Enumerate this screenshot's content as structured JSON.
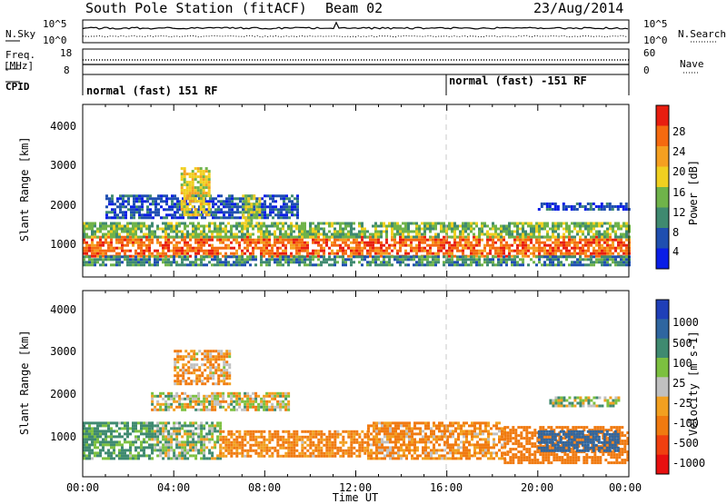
{
  "header": {
    "title": "South Pole Station (fitACF)",
    "beam": "Beam 02",
    "date": "23/Aug/2014"
  },
  "strips": {
    "nsky_label": "N.Sky",
    "nsky_tick_top": "10^5",
    "nsky_tick_bottom": "10^0",
    "nsearch_label": "N.Search",
    "nsearch_tick_top": "10^5",
    "nsearch_tick_bottom": "10^0",
    "freq_label": "Freq.",
    "freq_unit": "[MHz]",
    "freq_tick_top": "18",
    "freq_tick_bottom": "8",
    "nave_label": "Nave",
    "nave_tick_top": "60",
    "nave_tick_bottom": "0",
    "cpid_label": "CPID",
    "cpid_1": "normal (fast) 151 RF",
    "cpid_2": "normal (fast) -151 RF"
  },
  "axes": {
    "x_label": "Time UT",
    "x_ticks": [
      "00:00",
      "04:00",
      "08:00",
      "12:00",
      "16:00",
      "20:00",
      "00:00"
    ],
    "y_label": "Slant Range [km]",
    "y_ticks": [
      "1000",
      "2000",
      "3000",
      "4000"
    ]
  },
  "colorbars": {
    "power": {
      "label": "Power [dB]",
      "ticks": [
        "4",
        "8",
        "12",
        "16",
        "20",
        "24",
        "28"
      ],
      "colors": [
        "#0a1ee6",
        "#1f4fb0",
        "#3f8a70",
        "#6fb34a",
        "#f0d020",
        "#f5a020",
        "#f56a10",
        "#e81e10"
      ]
    },
    "velocity": {
      "label": "Velocity [m s-1]",
      "ticks": [
        "1000",
        "500",
        "100",
        "25",
        "-25",
        "-100",
        "-500",
        "-1000"
      ],
      "colors": [
        "#1f3fb8",
        "#2f66a0",
        "#3f8a70",
        "#7cc040",
        "#c0c0c0",
        "#f2a020",
        "#f07a10",
        "#f04010",
        "#e81010"
      ]
    }
  },
  "chart_data": [
    {
      "type": "heatmap",
      "title": "Power",
      "xlabel": "Time UT",
      "ylabel": "Slant Range [km]",
      "xlim_hours": [
        0,
        24
      ],
      "ylim_km": [
        200,
        4600
      ],
      "colorbar_label": "Power [dB]",
      "colorbar_range": [
        0,
        32
      ],
      "regions": [
        {
          "t0": 0.0,
          "t1": 24.0,
          "r0": 750,
          "r1": 1250,
          "value": 26
        },
        {
          "t0": 0.0,
          "t1": 24.0,
          "r0": 1250,
          "r1": 1600,
          "value": 14
        },
        {
          "t0": 0.0,
          "t1": 24.0,
          "r0": 500,
          "r1": 750,
          "value": 10
        },
        {
          "t0": 1.0,
          "t1": 9.5,
          "r0": 1700,
          "r1": 2300,
          "value": 6
        },
        {
          "t0": 4.3,
          "t1": 5.6,
          "r0": 1800,
          "r1": 3000,
          "value": 18
        },
        {
          "t0": 7.0,
          "t1": 7.8,
          "r0": 1600,
          "r1": 2300,
          "value": 16
        },
        {
          "t0": 20.0,
          "t1": 24.0,
          "r0": 1900,
          "r1": 2100,
          "value": 5
        }
      ]
    },
    {
      "type": "heatmap",
      "title": "Velocity",
      "xlabel": "Time UT",
      "ylabel": "Slant Range [km]",
      "xlim_hours": [
        0,
        24
      ],
      "ylim_km": [
        200,
        4600
      ],
      "colorbar_label": "Velocity [m s-1]",
      "colorbar_range": [
        -1000,
        1000
      ],
      "regions": [
        {
          "t0": 0.0,
          "t1": 3.0,
          "r0": 600,
          "r1": 1500,
          "value": 150
        },
        {
          "t0": 3.0,
          "t1": 6.0,
          "r0": 600,
          "r1": 1500,
          "value": 60
        },
        {
          "t0": 6.0,
          "t1": 12.5,
          "r0": 700,
          "r1": 1300,
          "value": -150
        },
        {
          "t0": 12.5,
          "t1": 18.5,
          "r0": 600,
          "r1": 1500,
          "value": -120
        },
        {
          "t0": 18.5,
          "t1": 24.0,
          "r0": 500,
          "r1": 1400,
          "value": -250
        },
        {
          "t0": 20.0,
          "t1": 23.5,
          "r0": 800,
          "r1": 1300,
          "value": 700
        },
        {
          "t0": 3.0,
          "t1": 9.0,
          "r0": 1800,
          "r1": 2200,
          "value": 0
        },
        {
          "t0": 4.0,
          "t1": 6.5,
          "r0": 2400,
          "r1": 3200,
          "value": -100
        },
        {
          "t0": 20.5,
          "t1": 23.5,
          "r0": 1900,
          "r1": 2100,
          "value": 60
        }
      ]
    }
  ]
}
